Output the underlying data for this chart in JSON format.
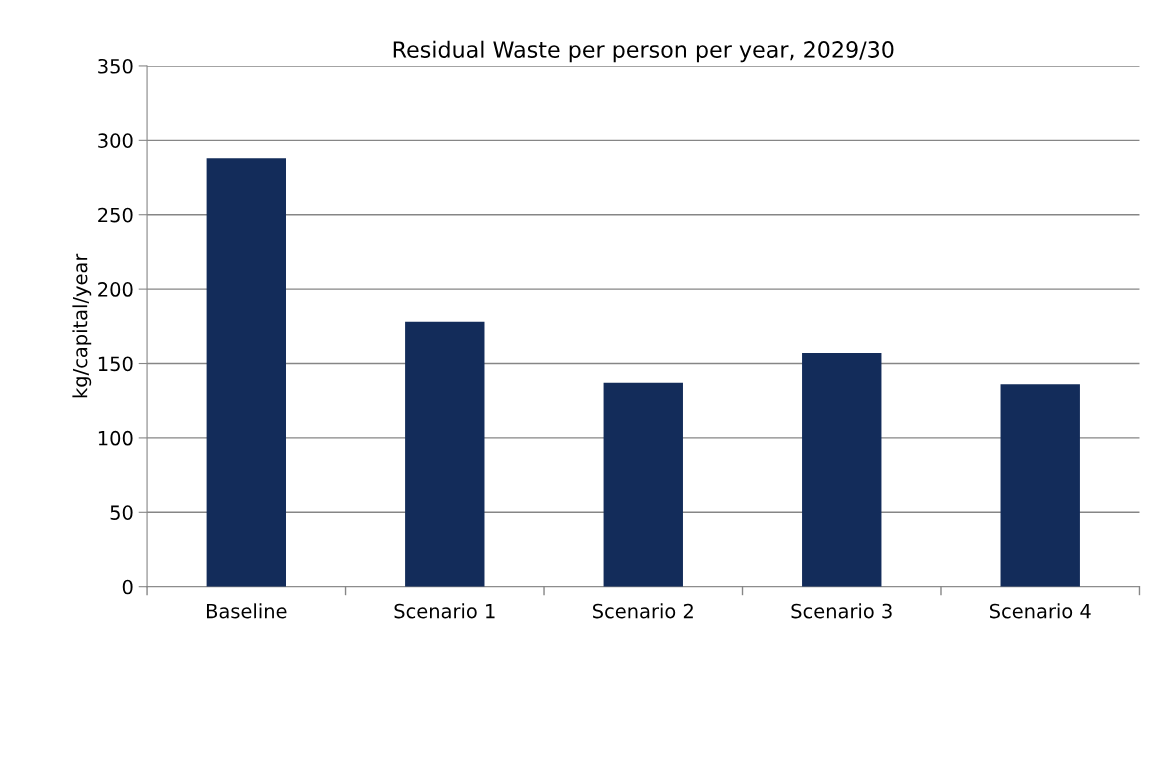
{
  "chart_data": {
    "type": "bar",
    "title": "Residual Waste per person per year, 2029/30",
    "ylabel": "kg/capital/year",
    "categories": [
      "Baseline",
      "Scenario 1",
      "Scenario 2",
      "Scenario 3",
      "Scenario 4"
    ],
    "values": [
      288,
      178,
      137,
      157,
      136
    ],
    "color": "#132c5a",
    "ylim": [
      0,
      350
    ],
    "yticks": [
      0,
      50,
      100,
      150,
      200,
      250,
      300,
      350
    ],
    "grid": "y",
    "legend": false
  }
}
